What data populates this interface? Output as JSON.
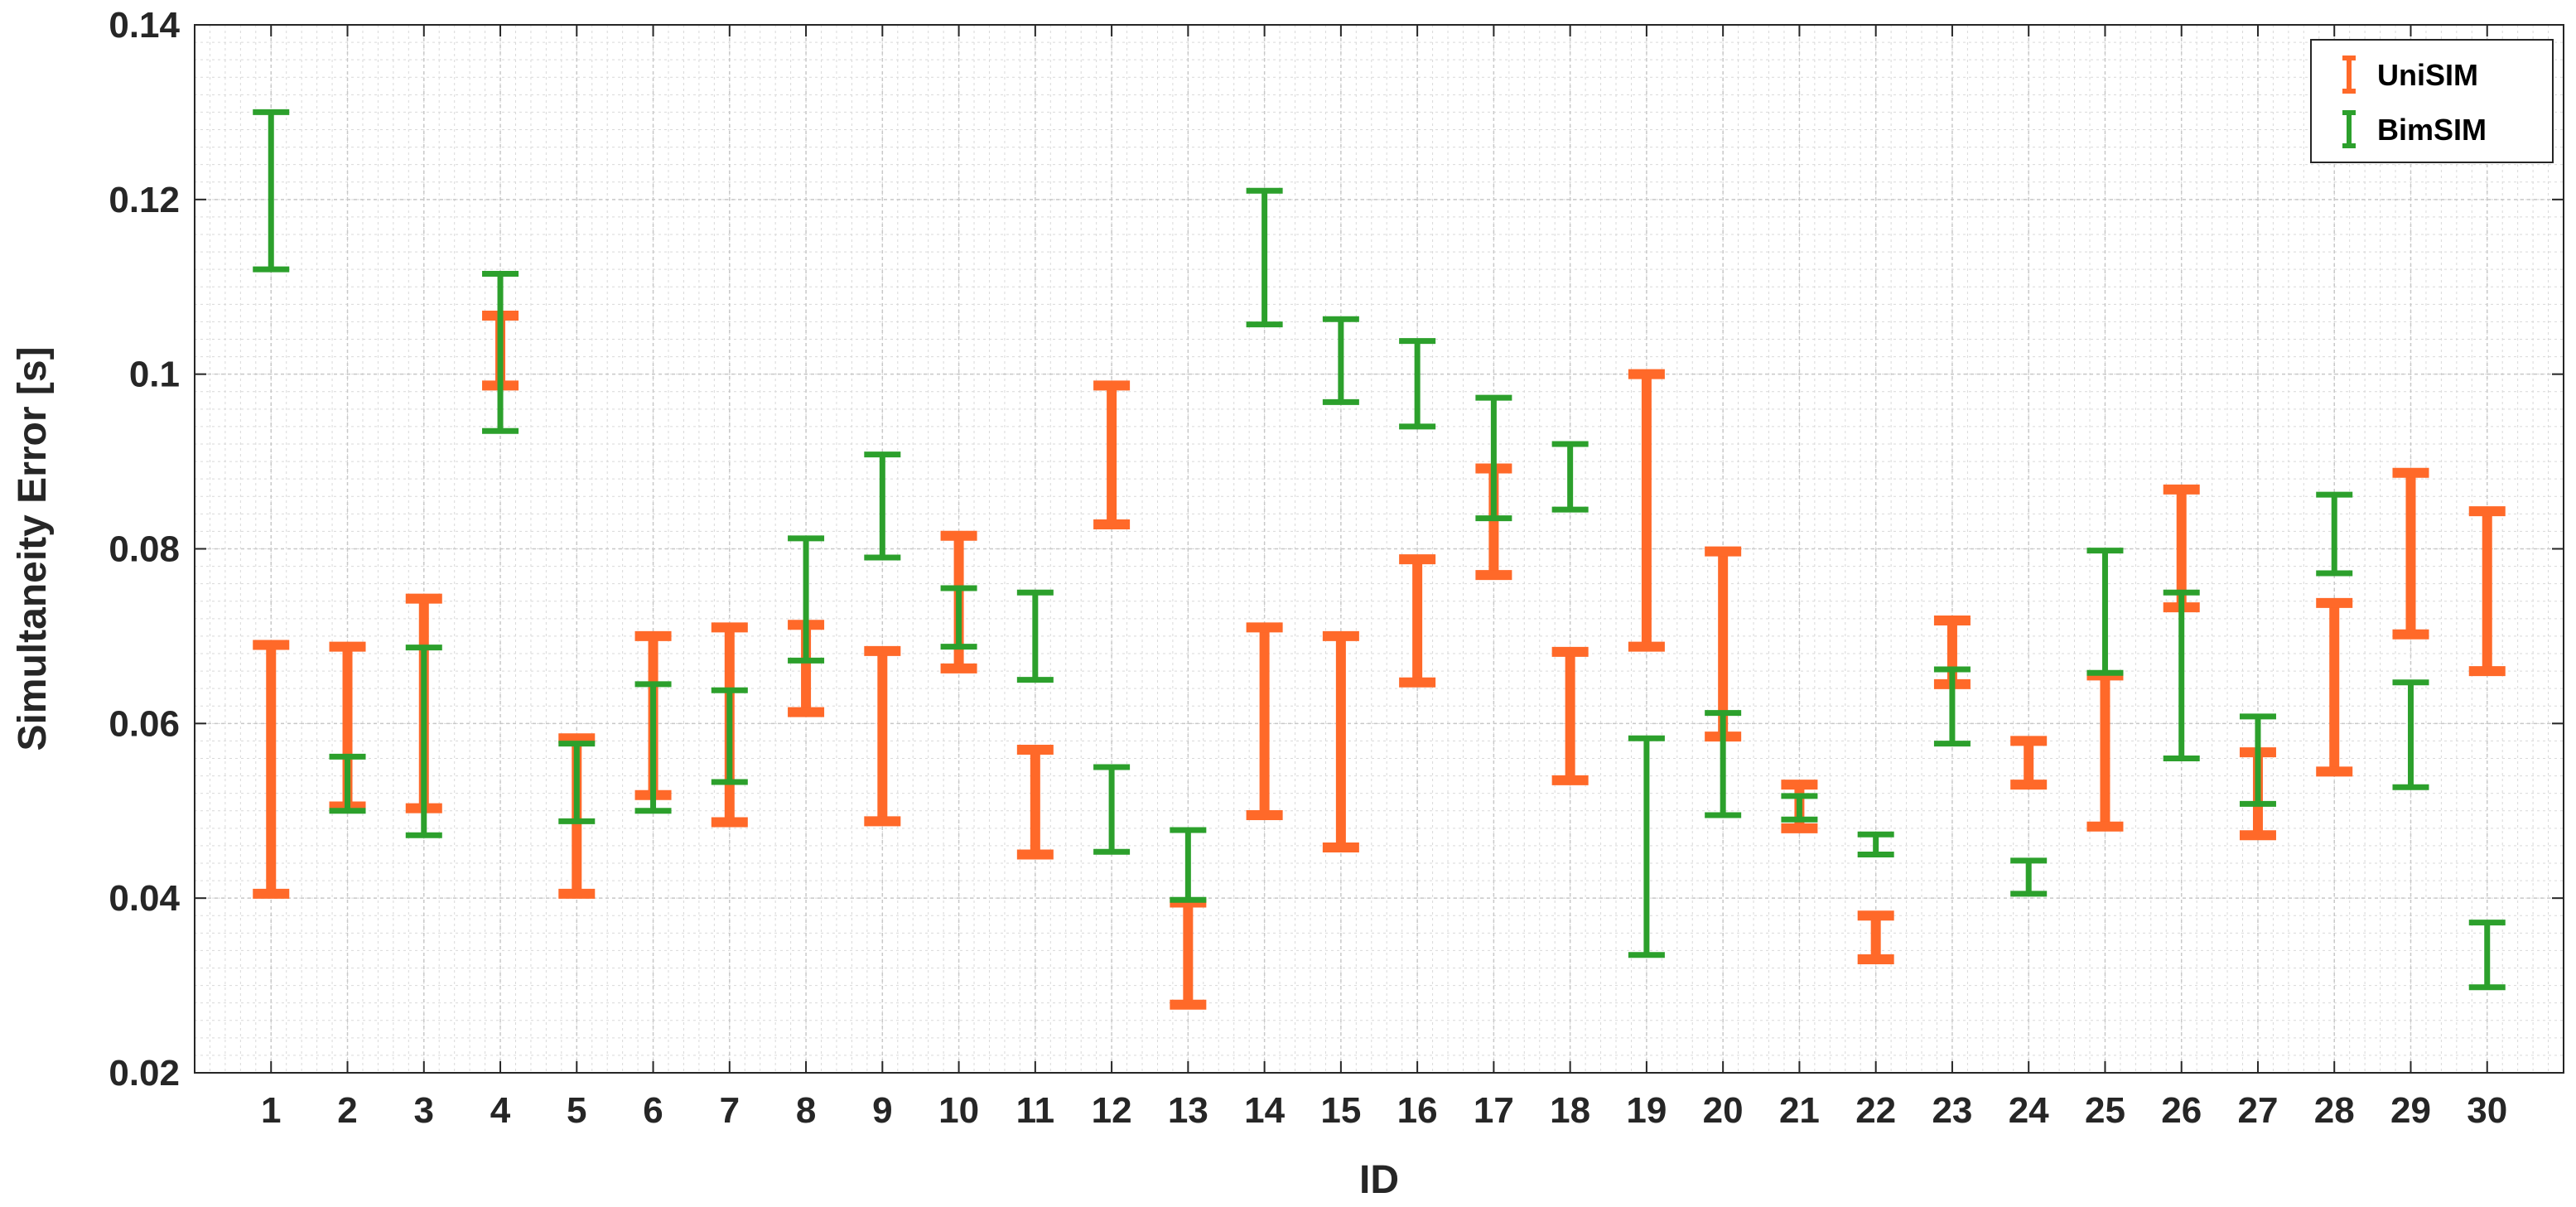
{
  "chart_data": {
    "type": "errorbar",
    "xlabel": "ID",
    "ylabel": "Simultaneity Error [s]",
    "ylim": [
      0.02,
      0.14
    ],
    "yticks": [
      "0.02",
      "0.04",
      "0.06",
      "0.08",
      "0.1",
      "0.12",
      "0.14"
    ],
    "categories": [
      "1",
      "2",
      "3",
      "4",
      "5",
      "6",
      "7",
      "8",
      "9",
      "10",
      "11",
      "12",
      "13",
      "14",
      "15",
      "16",
      "17",
      "18",
      "19",
      "20",
      "21",
      "22",
      "23",
      "24",
      "25",
      "26",
      "27",
      "28",
      "29",
      "30"
    ],
    "grid": true,
    "legend_position": "top-right",
    "series": [
      {
        "name": "UniSIM",
        "color": "#ff6929",
        "low": [
          0.0405,
          0.0505,
          0.0503,
          0.0987,
          0.0405,
          0.0518,
          0.0487,
          0.0613,
          0.0488,
          0.0663,
          0.045,
          0.0828,
          0.0278,
          0.0495,
          0.0458,
          0.0647,
          0.077,
          0.0535,
          0.0688,
          0.0585,
          0.048,
          0.033,
          0.0645,
          0.053,
          0.0482,
          0.0733,
          0.0472,
          0.0545,
          0.0702,
          0.066
        ],
        "high": [
          0.069,
          0.0688,
          0.0743,
          0.1067,
          0.0583,
          0.07,
          0.071,
          0.0713,
          0.0683,
          0.0815,
          0.057,
          0.0987,
          0.0395,
          0.071,
          0.07,
          0.0788,
          0.0892,
          0.0682,
          0.1,
          0.0797,
          0.053,
          0.038,
          0.0718,
          0.058,
          0.0655,
          0.0868,
          0.0567,
          0.0738,
          0.0887,
          0.0843
        ]
      },
      {
        "name": "BimSIM",
        "color": "#2ca02c",
        "low": [
          0.112,
          0.05,
          0.0472,
          0.0935,
          0.0488,
          0.05,
          0.0533,
          0.0672,
          0.079,
          0.0688,
          0.065,
          0.0453,
          0.0398,
          0.1057,
          0.0968,
          0.094,
          0.0835,
          0.0845,
          0.0335,
          0.0495,
          0.049,
          0.045,
          0.0577,
          0.0405,
          0.0658,
          0.056,
          0.0508,
          0.0772,
          0.0527,
          0.0298
        ],
        "high": [
          0.13,
          0.0562,
          0.0687,
          0.1115,
          0.0577,
          0.0645,
          0.0638,
          0.0812,
          0.0908,
          0.0755,
          0.075,
          0.055,
          0.0478,
          0.121,
          0.1063,
          0.1038,
          0.0973,
          0.092,
          0.0583,
          0.0612,
          0.0517,
          0.0473,
          0.0662,
          0.0443,
          0.0798,
          0.075,
          0.0608,
          0.0862,
          0.0647,
          0.0372
        ]
      }
    ]
  }
}
